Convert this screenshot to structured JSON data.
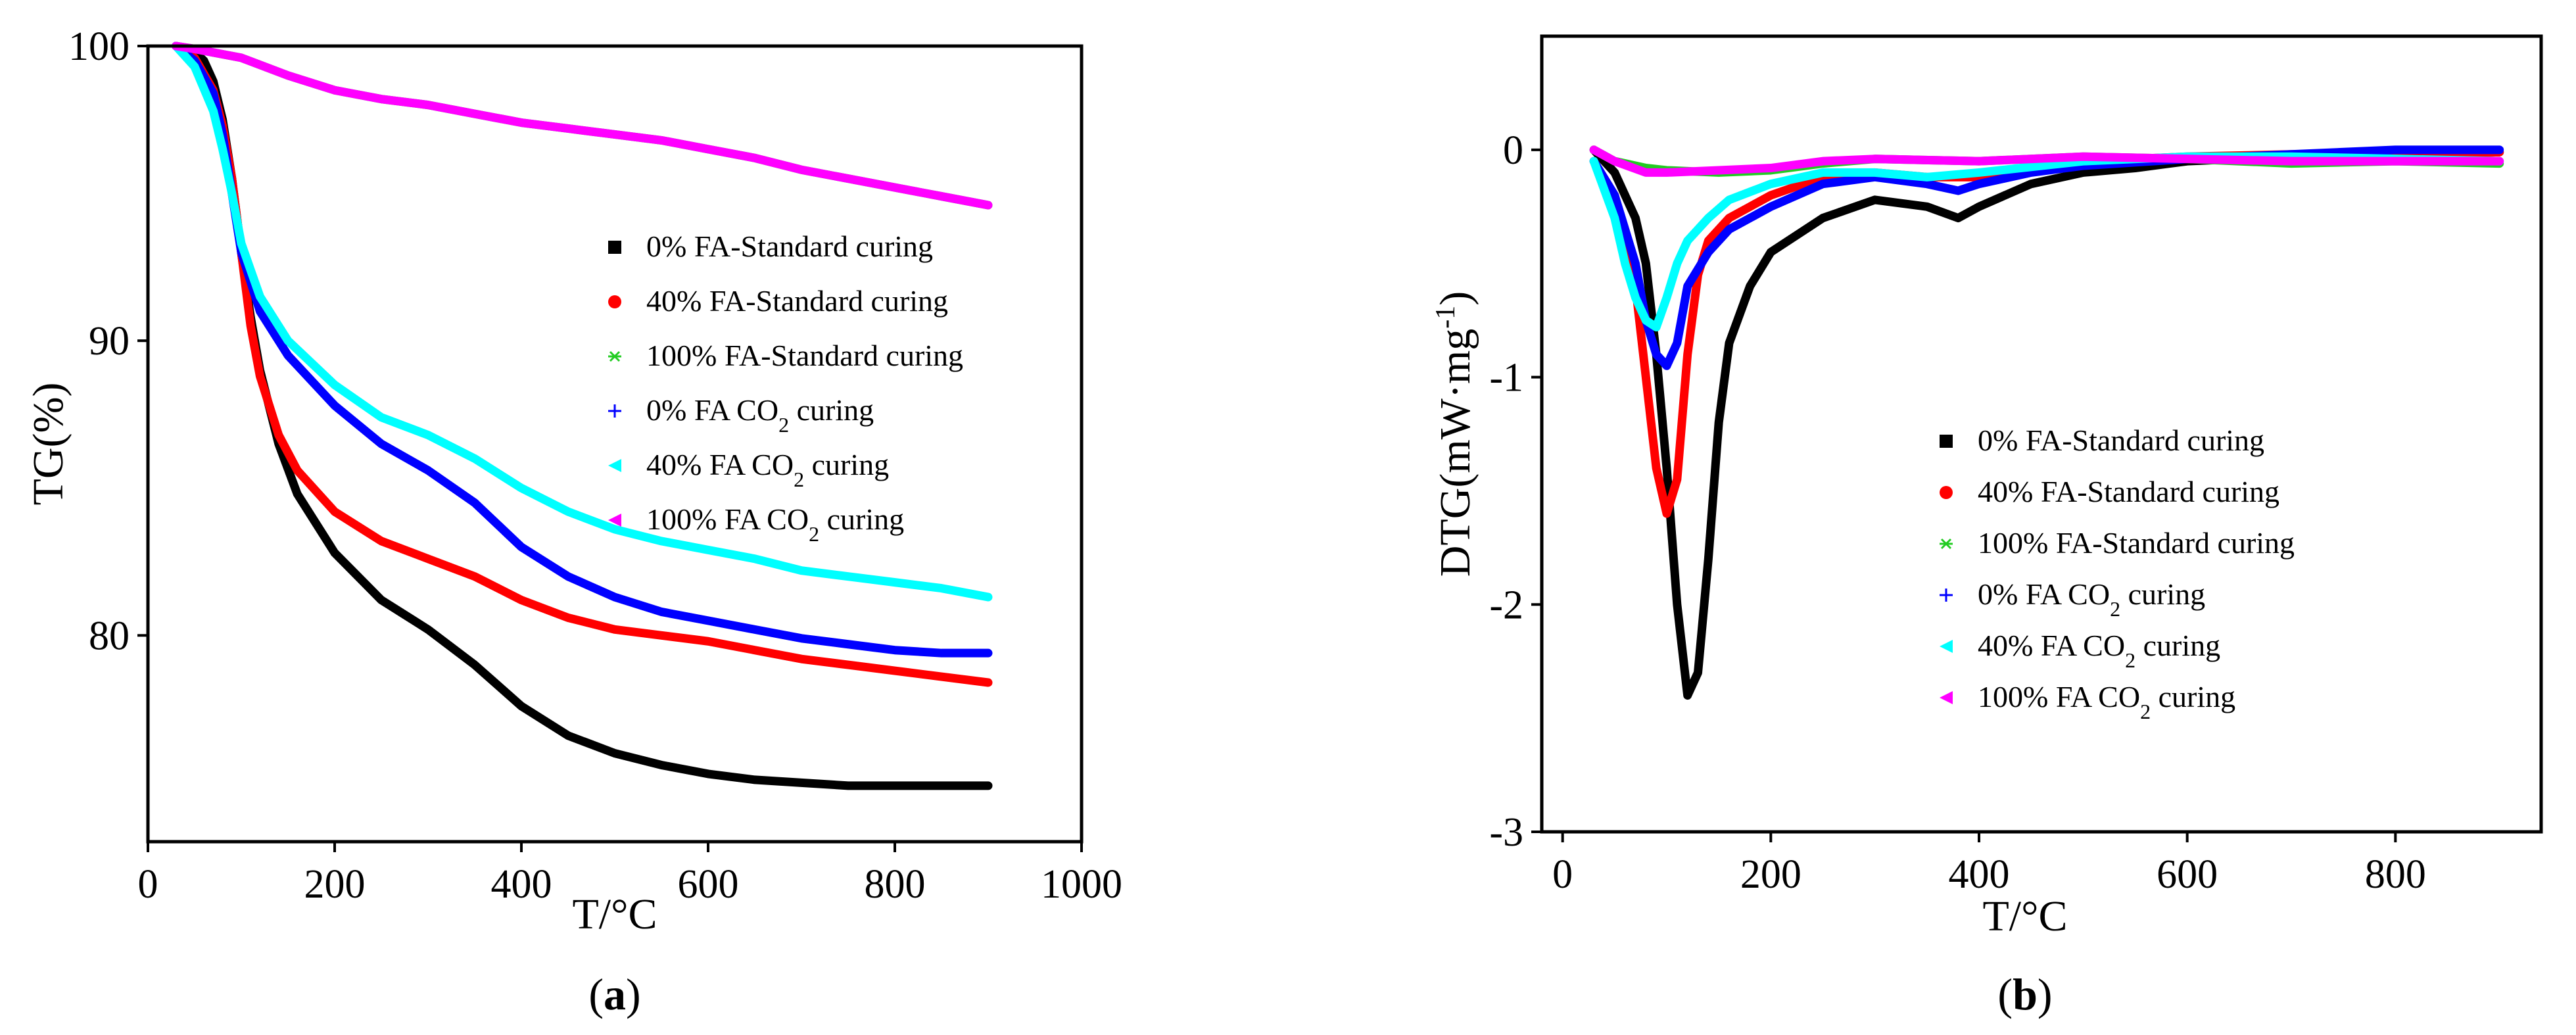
{
  "chart_data": [
    {
      "panel": "(a)",
      "type": "line",
      "title": "",
      "xlabel": "T/°C",
      "ylabel": "TG(%)",
      "xlim": [
        0,
        1000
      ],
      "ylim": [
        73,
        100
      ],
      "xticks": [
        "0",
        "200",
        "400",
        "600",
        "800",
        "1000"
      ],
      "yticks": [
        "80",
        "90",
        "100"
      ],
      "legend_position": "center-right",
      "series": [
        {
          "name": "0% FA-Standard curing",
          "color": "#000000",
          "marker": "square",
          "x": [
            30,
            50,
            60,
            70,
            80,
            90,
            100,
            110,
            120,
            140,
            160,
            200,
            250,
            300,
            350,
            400,
            450,
            500,
            550,
            600,
            650,
            700,
            750,
            800,
            850,
            900
          ],
          "y": [
            100,
            99.8,
            99.5,
            98.8,
            97.5,
            95.5,
            93.0,
            90.8,
            89.0,
            86.5,
            84.8,
            82.8,
            81.2,
            80.2,
            79.0,
            77.6,
            76.6,
            76.0,
            75.6,
            75.3,
            75.1,
            75.0,
            74.9,
            74.9,
            74.9,
            74.9
          ]
        },
        {
          "name": "40% FA-Standard curing",
          "color": "#ff0000",
          "marker": "circle",
          "x": [
            30,
            50,
            70,
            80,
            90,
            100,
            110,
            120,
            140,
            160,
            200,
            250,
            300,
            350,
            400,
            450,
            500,
            550,
            600,
            650,
            700,
            750,
            800,
            850,
            900
          ],
          "y": [
            100,
            99.6,
            98.5,
            97.3,
            95.5,
            93.0,
            90.5,
            88.8,
            86.8,
            85.6,
            84.2,
            83.2,
            82.6,
            82.0,
            81.2,
            80.6,
            80.2,
            80.0,
            79.8,
            79.5,
            79.2,
            79.0,
            78.8,
            78.6,
            78.4
          ]
        },
        {
          "name": "100% FA-Standard curing",
          "color": "#22cc22",
          "marker": "asterisk",
          "x": [
            30,
            50,
            100,
            150,
            200,
            250,
            300,
            350,
            400,
            450,
            500,
            550,
            600,
            650,
            700,
            750,
            800,
            850,
            900
          ],
          "y": [
            100,
            99.9,
            99.6,
            99.0,
            98.5,
            98.2,
            98.0,
            97.7,
            97.4,
            97.2,
            97.0,
            96.8,
            96.5,
            96.2,
            95.8,
            95.5,
            95.2,
            94.9,
            94.6
          ]
        },
        {
          "name": "0% FA CO2 curing",
          "color": "#0000ff",
          "marker": "plus",
          "x": [
            30,
            50,
            70,
            80,
            90,
            100,
            120,
            150,
            200,
            250,
            300,
            350,
            400,
            450,
            500,
            550,
            600,
            650,
            700,
            750,
            800,
            850,
            900
          ],
          "y": [
            100,
            99.5,
            98.4,
            97.0,
            95.0,
            93.0,
            91.0,
            89.5,
            87.8,
            86.5,
            85.6,
            84.5,
            83.0,
            82.0,
            81.3,
            80.8,
            80.5,
            80.2,
            79.9,
            79.7,
            79.5,
            79.4,
            79.4
          ]
        },
        {
          "name": "40% FA CO2 curing",
          "color": "#00ffff",
          "marker": "left-triangle",
          "x": [
            30,
            50,
            70,
            80,
            90,
            100,
            120,
            150,
            200,
            250,
            300,
            350,
            400,
            450,
            500,
            550,
            600,
            650,
            700,
            750,
            800,
            850,
            900
          ],
          "y": [
            100,
            99.3,
            97.8,
            96.5,
            95.0,
            93.3,
            91.5,
            90.0,
            88.5,
            87.4,
            86.8,
            86.0,
            85.0,
            84.2,
            83.6,
            83.2,
            82.9,
            82.6,
            82.2,
            82.0,
            81.8,
            81.6,
            81.3
          ]
        },
        {
          "name": "100% FA CO2 curing",
          "color": "#ff00ff",
          "marker": "left-triangle",
          "x": [
            30,
            50,
            100,
            150,
            200,
            250,
            300,
            350,
            400,
            450,
            500,
            550,
            600,
            650,
            700,
            750,
            800,
            850,
            900
          ],
          "y": [
            100,
            99.9,
            99.6,
            99.0,
            98.5,
            98.2,
            98.0,
            97.7,
            97.4,
            97.2,
            97.0,
            96.8,
            96.5,
            96.2,
            95.8,
            95.5,
            95.2,
            94.9,
            94.6
          ]
        }
      ]
    },
    {
      "panel": "(b)",
      "type": "line",
      "title": "",
      "xlabel": "T/°C",
      "ylabel": "DTG(mW·mg⁻¹)",
      "xlim": [
        -20,
        940
      ],
      "ylim": [
        -3,
        0.5
      ],
      "xticks": [
        "0",
        "200",
        "400",
        "600",
        "800"
      ],
      "yticks": [
        "-3",
        "-2",
        "-1",
        "0"
      ],
      "legend_position": "center-right",
      "series": [
        {
          "name": "0% FA-Standard curing",
          "color": "#000000",
          "marker": "square",
          "x": [
            30,
            50,
            70,
            80,
            90,
            100,
            110,
            120,
            130,
            140,
            150,
            160,
            180,
            200,
            250,
            300,
            350,
            380,
            400,
            450,
            500,
            550,
            600,
            700,
            800,
            900
          ],
          "y": [
            0,
            -0.1,
            -0.3,
            -0.5,
            -0.9,
            -1.4,
            -2.0,
            -2.4,
            -2.3,
            -1.8,
            -1.2,
            -0.85,
            -0.6,
            -0.45,
            -0.3,
            -0.22,
            -0.25,
            -0.3,
            -0.25,
            -0.15,
            -0.1,
            -0.08,
            -0.05,
            -0.03,
            -0.02,
            -0.01
          ]
        },
        {
          "name": "40% FA-Standard curing",
          "color": "#ff0000",
          "marker": "circle",
          "x": [
            30,
            50,
            70,
            80,
            90,
            100,
            110,
            120,
            130,
            140,
            160,
            180,
            200,
            250,
            300,
            350,
            400,
            500,
            600,
            700,
            800,
            900
          ],
          "y": [
            -0.05,
            -0.2,
            -0.6,
            -1.0,
            -1.4,
            -1.6,
            -1.45,
            -0.9,
            -0.55,
            -0.4,
            -0.3,
            -0.25,
            -0.2,
            -0.12,
            -0.1,
            -0.12,
            -0.12,
            -0.05,
            -0.03,
            -0.02,
            -0.02,
            -0.01
          ]
        },
        {
          "name": "100% FA-Standard curing",
          "color": "#22cc22",
          "marker": "asterisk",
          "x": [
            30,
            50,
            80,
            100,
            150,
            200,
            250,
            300,
            400,
            500,
            600,
            700,
            800,
            900
          ],
          "y": [
            0,
            -0.05,
            -0.08,
            -0.09,
            -0.1,
            -0.09,
            -0.06,
            -0.04,
            -0.05,
            -0.03,
            -0.04,
            -0.06,
            -0.05,
            -0.06
          ]
        },
        {
          "name": "0% FA CO2 curing",
          "color": "#0000ff",
          "marker": "plus",
          "x": [
            30,
            50,
            70,
            80,
            90,
            100,
            110,
            120,
            140,
            160,
            200,
            250,
            300,
            350,
            380,
            400,
            450,
            500,
            600,
            700,
            800,
            900
          ],
          "y": [
            -0.05,
            -0.2,
            -0.5,
            -0.75,
            -0.9,
            -0.95,
            -0.85,
            -0.6,
            -0.45,
            -0.35,
            -0.25,
            -0.15,
            -0.12,
            -0.15,
            -0.18,
            -0.15,
            -0.1,
            -0.07,
            -0.04,
            -0.02,
            0.0,
            0.0
          ]
        },
        {
          "name": "40% FA CO2 curing",
          "color": "#00ffff",
          "marker": "left-triangle",
          "x": [
            30,
            50,
            60,
            70,
            80,
            90,
            100,
            110,
            120,
            140,
            160,
            200,
            250,
            300,
            350,
            400,
            500,
            600,
            700,
            800,
            900
          ],
          "y": [
            -0.05,
            -0.3,
            -0.5,
            -0.65,
            -0.75,
            -0.78,
            -0.65,
            -0.5,
            -0.4,
            -0.3,
            -0.22,
            -0.15,
            -0.1,
            -0.1,
            -0.12,
            -0.1,
            -0.05,
            -0.03,
            -0.03,
            -0.04,
            -0.05
          ]
        },
        {
          "name": "100% FA CO2 curing",
          "color": "#ff00ff",
          "marker": "left-triangle",
          "x": [
            30,
            50,
            80,
            100,
            150,
            200,
            250,
            300,
            400,
            500,
            600,
            700,
            800,
            900
          ],
          "y": [
            0,
            -0.05,
            -0.1,
            -0.1,
            -0.09,
            -0.08,
            -0.05,
            -0.04,
            -0.05,
            -0.03,
            -0.04,
            -0.05,
            -0.05,
            -0.05
          ]
        }
      ]
    }
  ]
}
